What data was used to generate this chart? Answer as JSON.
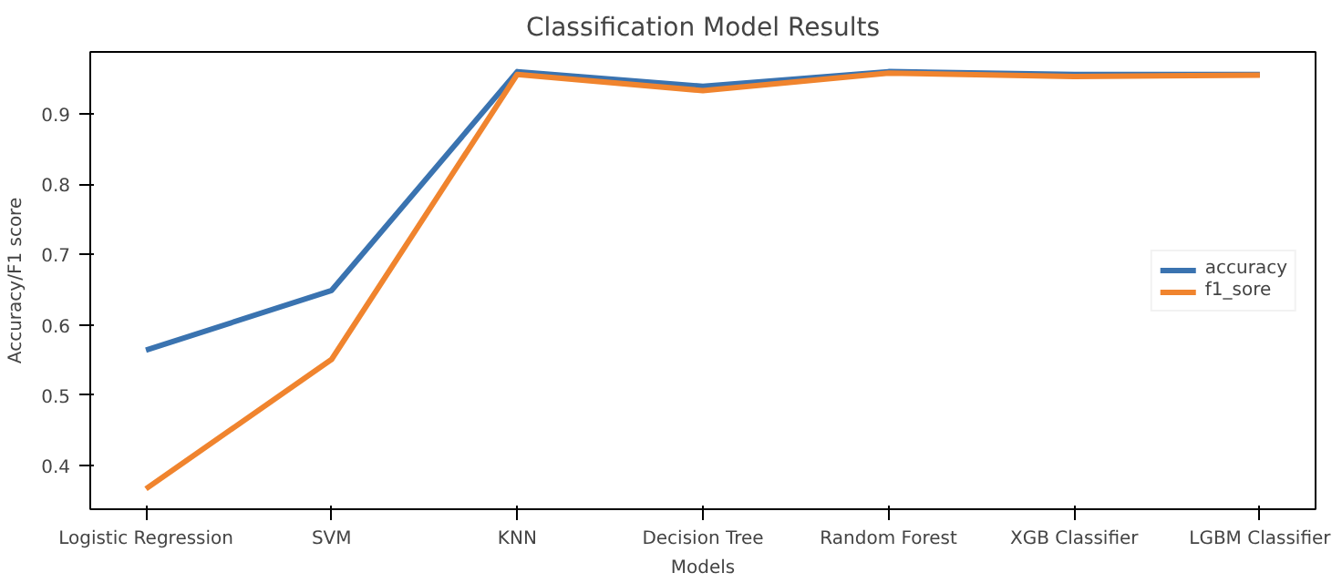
{
  "chart_data": {
    "type": "line",
    "title": "Classification Model Results",
    "xlabel": "Models",
    "ylabel": "Accuracy/F1 score",
    "categories": [
      "Logistic Regression",
      "SVM",
      "KNN",
      "Decision Tree",
      "Random Forest",
      "XGB Classifier",
      "LGBM Classifier"
    ],
    "series": [
      {
        "name": "accuracy",
        "color": "#3a73b0",
        "values": [
          0.564,
          0.649,
          0.96,
          0.939,
          0.96,
          0.956,
          0.956
        ]
      },
      {
        "name": "f1_sore",
        "color": "#f0842e",
        "values": [
          0.367,
          0.551,
          0.956,
          0.933,
          0.958,
          0.953,
          0.955
        ]
      }
    ],
    "ylim": [
      0.338,
      0.988
    ],
    "yticks": [
      0.4,
      0.5,
      0.6,
      0.7,
      0.8,
      0.9
    ],
    "grid": false,
    "legend": "right",
    "marker": "none",
    "line_style": "solid"
  }
}
